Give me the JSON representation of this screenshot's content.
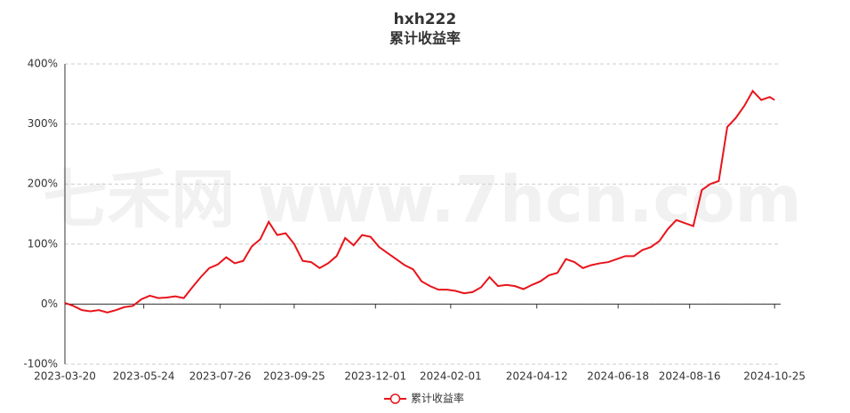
{
  "chart_data": {
    "type": "line",
    "title": "hxh222",
    "subtitle": "累计收益率",
    "watermark": "七禾网 www.7hcn.com",
    "x": [
      "2023-03-20",
      "2023-03-27",
      "2023-04-03",
      "2023-04-10",
      "2023-04-17",
      "2023-04-24",
      "2023-05-01",
      "2023-05-08",
      "2023-05-15",
      "2023-05-22",
      "2023-05-29",
      "2023-06-05",
      "2023-06-12",
      "2023-06-19",
      "2023-06-26",
      "2023-07-03",
      "2023-07-10",
      "2023-07-17",
      "2023-07-24",
      "2023-07-31",
      "2023-08-07",
      "2023-08-14",
      "2023-08-21",
      "2023-08-28",
      "2023-09-04",
      "2023-09-11",
      "2023-09-18",
      "2023-09-25",
      "2023-10-02",
      "2023-10-09",
      "2023-10-16",
      "2023-10-23",
      "2023-10-30",
      "2023-11-06",
      "2023-11-13",
      "2023-11-20",
      "2023-11-27",
      "2023-12-04",
      "2023-12-11",
      "2023-12-18",
      "2023-12-25",
      "2024-01-01",
      "2024-01-08",
      "2024-01-15",
      "2024-01-22",
      "2024-01-29",
      "2024-02-05",
      "2024-02-12",
      "2024-02-19",
      "2024-02-26",
      "2024-03-04",
      "2024-03-11",
      "2024-03-18",
      "2024-03-25",
      "2024-04-01",
      "2024-04-08",
      "2024-04-15",
      "2024-04-22",
      "2024-04-29",
      "2024-05-06",
      "2024-05-13",
      "2024-05-20",
      "2024-05-27",
      "2024-06-03",
      "2024-06-10",
      "2024-06-17",
      "2024-06-24",
      "2024-07-01",
      "2024-07-08",
      "2024-07-15",
      "2024-07-22",
      "2024-07-29",
      "2024-08-05",
      "2024-08-12",
      "2024-08-19",
      "2024-08-26",
      "2024-09-02",
      "2024-09-09",
      "2024-09-16",
      "2024-09-23",
      "2024-09-30",
      "2024-10-07",
      "2024-10-14",
      "2024-10-21",
      "2024-10-25"
    ],
    "series": [
      {
        "name": "累计收益率",
        "color": "#e8141b",
        "values": [
          2,
          -3,
          -10,
          -12,
          -10,
          -14,
          -10,
          -5,
          -3,
          8,
          14,
          10,
          11,
          13,
          10,
          28,
          45,
          60,
          66,
          78,
          68,
          72,
          96,
          108,
          137,
          115,
          118,
          100,
          72,
          70,
          60,
          68,
          80,
          110,
          98,
          115,
          112,
          95,
          85,
          75,
          65,
          58,
          38,
          30,
          24,
          24,
          22,
          18,
          20,
          28,
          45,
          30,
          32,
          30,
          25,
          32,
          38,
          48,
          52,
          75,
          70,
          60,
          65,
          68,
          70,
          75,
          80,
          80,
          90,
          95,
          105,
          125,
          140,
          135,
          130,
          190,
          200,
          205,
          295,
          310,
          330,
          355,
          340,
          345,
          340
        ]
      }
    ],
    "xlim": [
      "2023-03-20",
      "2024-10-30"
    ],
    "xticks": [
      "2023-03-20",
      "2023-05-24",
      "2023-07-26",
      "2023-09-25",
      "2023-12-01",
      "2024-02-01",
      "2024-04-12",
      "2024-06-18",
      "2024-08-16",
      "2024-10-25"
    ],
    "ylim": [
      -100,
      400
    ],
    "yticks": [
      {
        "value": -100,
        "label": "-100%"
      },
      {
        "value": 0,
        "label": "0%"
      },
      {
        "value": 100,
        "label": "100%"
      },
      {
        "value": 200,
        "label": "200%"
      },
      {
        "value": 300,
        "label": "300%"
      },
      {
        "value": 400,
        "label": "400%"
      }
    ],
    "grid": true,
    "legend": "bottom"
  }
}
